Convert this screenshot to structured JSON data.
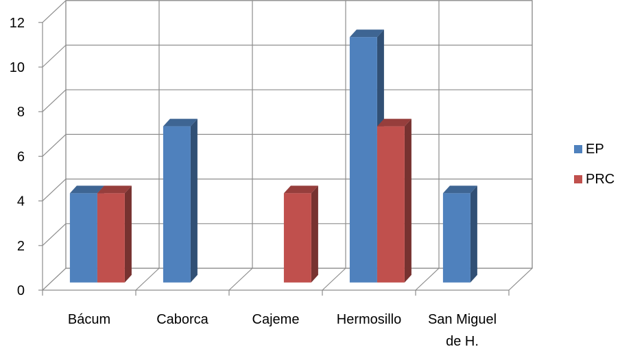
{
  "chart_data": {
    "type": "bar",
    "style": "3d-clustered-column",
    "categories": [
      "Bácum",
      "Caborca",
      "Cajeme",
      "Hermosillo",
      "San Miguel de H."
    ],
    "category_label_lines": [
      [
        "Bácum"
      ],
      [
        "Caborca"
      ],
      [
        "Cajeme"
      ],
      [
        "Hermosillo"
      ],
      [
        "San Miguel",
        "de H."
      ]
    ],
    "series": [
      {
        "name": "EP",
        "values": [
          4,
          7,
          0,
          11,
          4
        ],
        "color": "#4F81BD"
      },
      {
        "name": "PRC",
        "values": [
          4,
          0,
          4,
          7,
          0
        ],
        "color": "#C0504D"
      }
    ],
    "y_ticks": [
      0,
      2,
      4,
      6,
      8,
      10,
      12
    ],
    "ylim": [
      0,
      12
    ],
    "grid": true,
    "legend_position": "right"
  }
}
